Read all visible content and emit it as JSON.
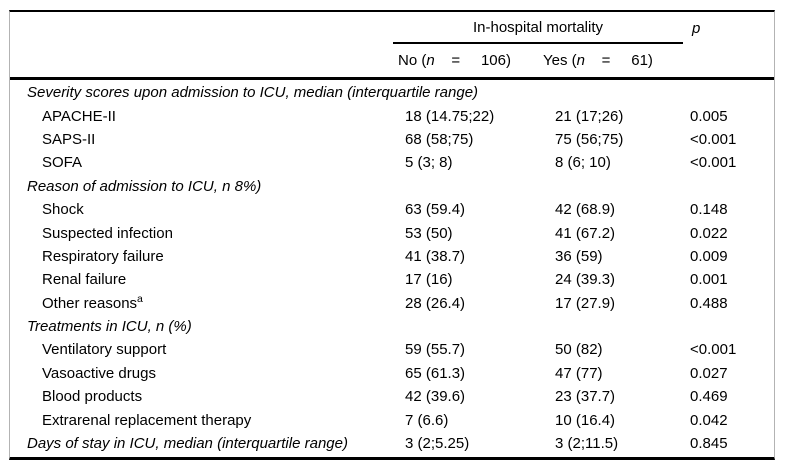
{
  "table": {
    "header": {
      "group_label": "In-hospital mortality",
      "p_label": "p",
      "col_no": {
        "pre": "No (",
        "n": "n",
        "post": "    =     106)"
      },
      "col_yes": {
        "pre": "Yes (",
        "n": "n",
        "post": "    =     61)"
      }
    },
    "rows": [
      {
        "type": "section",
        "label": "Severity scores upon admission to ICU, median (interquartile range)"
      },
      {
        "type": "item",
        "label": "APACHE-II",
        "no": "18 (14.75;22)",
        "yes": "21 (17;26)",
        "p": "0.005"
      },
      {
        "type": "item",
        "label": "SAPS-II",
        "no": "68 (58;75)",
        "yes": "75 (56;75)",
        "p": "<0.001"
      },
      {
        "type": "item",
        "label": "SOFA",
        "no": "5 (3; 8)",
        "yes": "8 (6; 10)",
        "p": "<0.001"
      },
      {
        "type": "section",
        "label": "Reason of admission to ICU, n 8%)"
      },
      {
        "type": "item",
        "label": "Shock",
        "no": "63 (59.4)",
        "yes": "42 (68.9)",
        "p": "0.148"
      },
      {
        "type": "item",
        "label": "Suspected infection",
        "no": "53 (50)",
        "yes": "41 (67.2)",
        "p": "0.022"
      },
      {
        "type": "item",
        "label": "Respiratory failure",
        "no": "41 (38.7)",
        "yes": "36 (59)",
        "p": "0.009"
      },
      {
        "type": "item",
        "label": "Renal failure",
        "no": "17 (16)",
        "yes": "24 (39.3)",
        "p": "0.001"
      },
      {
        "type": "item",
        "label": "Other reasons",
        "sup": "a",
        "no": "28 (26.4)",
        "yes": "17 (27.9)",
        "p": "0.488"
      },
      {
        "type": "section",
        "label": "Treatments in ICU, n (%)"
      },
      {
        "type": "item",
        "label": "Ventilatory support",
        "no": "59 (55.7)",
        "yes": "50 (82)",
        "p": "<0.001"
      },
      {
        "type": "item",
        "label": "Vasoactive drugs",
        "no": "65 (61.3)",
        "yes": "47 (77)",
        "p": "0.027"
      },
      {
        "type": "item",
        "label": "Blood products",
        "no": "42 (39.6)",
        "yes": "23 (37.7)",
        "p": "0.469"
      },
      {
        "type": "item",
        "label": "Extrarenal replacement therapy",
        "no": "7 (6.6)",
        "yes": "10 (16.4)",
        "p": "0.042"
      },
      {
        "type": "section-data",
        "label": "Days of stay in ICU, median (interquartile range)",
        "no": "3 (2;5.25)",
        "yes": "3 (2;11.5)",
        "p": "0.845"
      }
    ],
    "colors": {
      "rule_black": "#000000",
      "border_gray": "#b3b3b3",
      "text": "#000000",
      "background": "#ffffff"
    }
  }
}
